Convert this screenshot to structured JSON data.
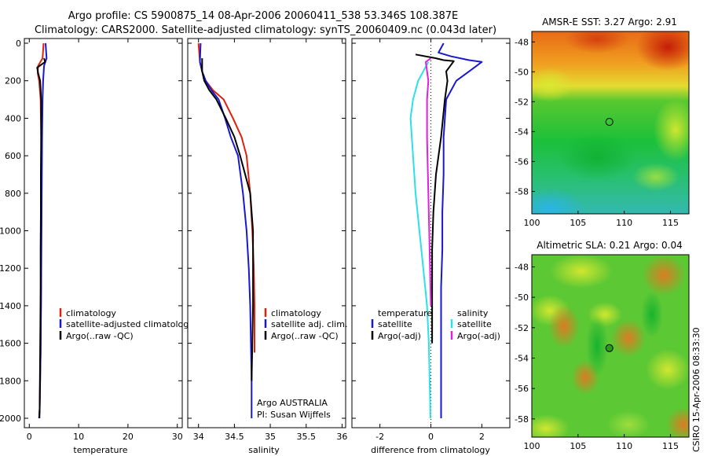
{
  "title_line1": "Argo profile: CS 5900875_14 08-Apr-2006 20060411_538 53.346S 108.387E",
  "title_line2": "Climatology: CARS2000. Satellite-adjusted climatology: synTS_20060409.nc (0.043d later)",
  "side_credit": "CSIRO 15-Apr-2006 08:33:30",
  "colors": {
    "climatology": "#e0200c",
    "satellite": "#1818d0",
    "argo": "#000000",
    "sat_diff_T": "#2ce0e8",
    "argo_diff_S": "#e020e0"
  },
  "chart_data": [
    {
      "type": "line",
      "id": "temperature",
      "xlabel": "temperature",
      "ylabel": "",
      "xlim": [
        -1,
        31
      ],
      "ylim": [
        2050,
        0
      ],
      "xticks": [
        "0",
        "10",
        "20",
        "30"
      ],
      "xtick_values": [
        0,
        10,
        20,
        30
      ],
      "yticks": [
        "0",
        "200",
        "400",
        "600",
        "800",
        "1000",
        "1200",
        "1400",
        "1600",
        "1800",
        "2000"
      ],
      "ytick_values": [
        0,
        200,
        400,
        600,
        800,
        1000,
        1200,
        1400,
        1600,
        1800,
        2000
      ],
      "legend": {
        "placement": "bottom-right",
        "entries": [
          "climatology",
          "satellite-adjusted climatology",
          "Argo(..raw -QC)"
        ]
      },
      "series": [
        {
          "name": "climatology",
          "color": "#e0200c",
          "x": [
            2.9,
            2.7,
            1.8,
            1.7,
            2.0,
            2.3,
            2.4,
            2.45,
            2.45,
            2.4,
            2.4,
            2.35,
            2.3,
            2.2,
            2.1,
            2.0
          ],
          "y": [
            0,
            80,
            120,
            160,
            200,
            300,
            500,
            700,
            900,
            1100,
            1300,
            1500,
            1650,
            1800,
            1950,
            2000
          ]
        },
        {
          "name": "satellite-adjusted climatology",
          "color": "#1818d0",
          "x": [
            3.3,
            3.5,
            3.0,
            2.9,
            2.8,
            2.7,
            2.6,
            2.55,
            2.5,
            2.45,
            2.4,
            2.35,
            2.3,
            2.2,
            2.1,
            2.0
          ],
          "y": [
            0,
            80,
            120,
            160,
            200,
            300,
            500,
            700,
            900,
            1100,
            1300,
            1500,
            1650,
            1800,
            1950,
            2000
          ]
        },
        {
          "name": "Argo(..raw -QC)",
          "color": "#000000",
          "x": [
            3.0,
            3.2,
            1.6,
            1.8,
            2.2,
            2.4,
            2.4,
            2.35,
            2.35,
            2.3,
            2.3,
            2.25,
            2.2,
            2.15,
            2.1,
            2.05
          ],
          "y": [
            80,
            100,
            130,
            160,
            200,
            300,
            500,
            700,
            900,
            1100,
            1300,
            1500,
            1650,
            1800,
            1950,
            2000
          ]
        }
      ]
    },
    {
      "type": "line",
      "id": "salinity",
      "xlabel": "salinity",
      "ylabel": "",
      "xlim": [
        33.85,
        36.05
      ],
      "ylim": [
        2050,
        0
      ],
      "xticks": [
        "34",
        "34.5",
        "35",
        "35.5",
        "36"
      ],
      "xtick_values": [
        34,
        34.5,
        35,
        35.5,
        36
      ],
      "legend": {
        "placement": "bottom-right",
        "entries": [
          "climatology",
          "satellite adj. clim.",
          "Argo(..raw -QC)"
        ]
      },
      "annotations": [
        "Argo AUSTRALIA",
        "PI: Susan Wijffels"
      ],
      "series": [
        {
          "name": "climatology",
          "color": "#e0200c",
          "x": [
            34.0,
            34.02,
            34.05,
            34.1,
            34.2,
            34.35,
            34.48,
            34.6,
            34.67,
            34.72,
            34.75,
            34.77,
            34.78,
            34.78
          ],
          "y": [
            0,
            100,
            150,
            200,
            250,
            300,
            400,
            500,
            600,
            800,
            1000,
            1200,
            1400,
            1650
          ]
        },
        {
          "name": "satellite adj. clim.",
          "color": "#1818d0",
          "x": [
            34.03,
            34.02,
            34.05,
            34.1,
            34.18,
            34.28,
            34.37,
            34.45,
            34.55,
            34.62,
            34.67,
            34.7,
            34.72,
            34.73,
            34.74,
            34.74
          ],
          "y": [
            0,
            100,
            150,
            200,
            250,
            300,
            400,
            500,
            600,
            800,
            1000,
            1200,
            1400,
            1600,
            1800,
            2000
          ]
        },
        {
          "name": "Argo(..raw -QC)",
          "color": "#000000",
          "x": [
            34.05,
            34.05,
            34.08,
            34.15,
            34.25,
            34.38,
            34.5,
            34.58,
            34.65,
            34.72,
            34.76,
            34.76,
            34.76,
            34.75,
            34.74
          ],
          "y": [
            80,
            150,
            200,
            250,
            300,
            400,
            500,
            600,
            700,
            800,
            1000,
            1200,
            1400,
            1600,
            1800
          ]
        }
      ]
    },
    {
      "type": "line",
      "id": "difference",
      "xlabel": "difference from climatology",
      "ylabel": "",
      "xlim": [
        -3.1,
        3.1
      ],
      "ylim": [
        2050,
        0
      ],
      "xticks": [
        "-2",
        "0",
        "2"
      ],
      "xtick_values": [
        -2,
        0,
        2
      ],
      "legend": {
        "placement": "bottom",
        "entries": [
          {
            "group": "temperature",
            "items": [
              "satellite",
              "Argo(-adj)"
            ]
          },
          {
            "group": "salinity",
            "items": [
              "satellite",
              "Argo(-adj)"
            ]
          }
        ]
      },
      "series": [
        {
          "name": "temperature satellite",
          "color": "#1818d0",
          "x": [
            0.5,
            0.3,
            0.8,
            1.5,
            2.0,
            1.6,
            1.0,
            0.6,
            0.5,
            0.5,
            0.45,
            0.45,
            0.4,
            0.4,
            0.4,
            0.4
          ],
          "y": [
            0,
            50,
            70,
            90,
            100,
            140,
            200,
            300,
            500,
            700,
            900,
            1100,
            1300,
            1500,
            1700,
            2000
          ]
        },
        {
          "name": "temperature Argo(-adj)",
          "color": "#000000",
          "x": [
            -0.6,
            0.2,
            0.5,
            0.9,
            0.6,
            0.65,
            0.55,
            0.4,
            0.2,
            0.1,
            0.05,
            0.05,
            0.05,
            0.05
          ],
          "y": [
            60,
            80,
            90,
            95,
            150,
            200,
            300,
            500,
            700,
            900,
            1100,
            1300,
            1500,
            1600
          ]
        },
        {
          "name": "salinity satellite",
          "color": "#2ce0e8",
          "x": [
            -0.1,
            -0.5,
            -0.7,
            -0.8,
            -0.7,
            -0.6,
            -0.45,
            -0.3,
            -0.15,
            -0.08,
            -0.05,
            -0.03,
            -0.02
          ],
          "y": [
            100,
            200,
            300,
            400,
            600,
            800,
            1000,
            1200,
            1400,
            1600,
            1800,
            1900,
            2000
          ]
        },
        {
          "name": "salinity Argo(-adj)",
          "color": "#e020e0",
          "x": [
            0.0,
            -0.2,
            -0.1,
            -0.15,
            -0.15,
            -0.1,
            -0.05,
            0.0
          ],
          "y": [
            80,
            100,
            200,
            300,
            500,
            800,
            1100,
            1400
          ]
        }
      ]
    },
    {
      "type": "heatmap",
      "id": "sst_map",
      "title": "AMSR-E SST: 3.27 Argo: 2.91",
      "xlim": [
        100,
        117
      ],
      "ylim": [
        -59.5,
        -47.3
      ],
      "xticks": [
        "100",
        "105",
        "110",
        "115"
      ],
      "xtick_values": [
        100,
        105,
        110,
        115
      ],
      "yticks": [
        "-48",
        "-50",
        "-52",
        "-54",
        "-56",
        "-58"
      ],
      "ytick_values": [
        -48,
        -50,
        -52,
        -54,
        -56,
        -58
      ],
      "marker": {
        "lon": 108.387,
        "lat": -53.346
      }
    },
    {
      "type": "heatmap",
      "id": "sla_map",
      "title": "Altimetric SLA: 0.21 Argo: 0.04",
      "xlim": [
        100,
        117
      ],
      "ylim": [
        -59.2,
        -47.2
      ],
      "xticks": [
        "100",
        "105",
        "110",
        "115"
      ],
      "xtick_values": [
        100,
        105,
        110,
        115
      ],
      "yticks": [
        "-48",
        "-50",
        "-52",
        "-54",
        "-56",
        "-58"
      ],
      "ytick_values": [
        -48,
        -50,
        -52,
        -54,
        -56,
        -58
      ],
      "marker": {
        "lon": 108.387,
        "lat": -53.346
      }
    }
  ]
}
